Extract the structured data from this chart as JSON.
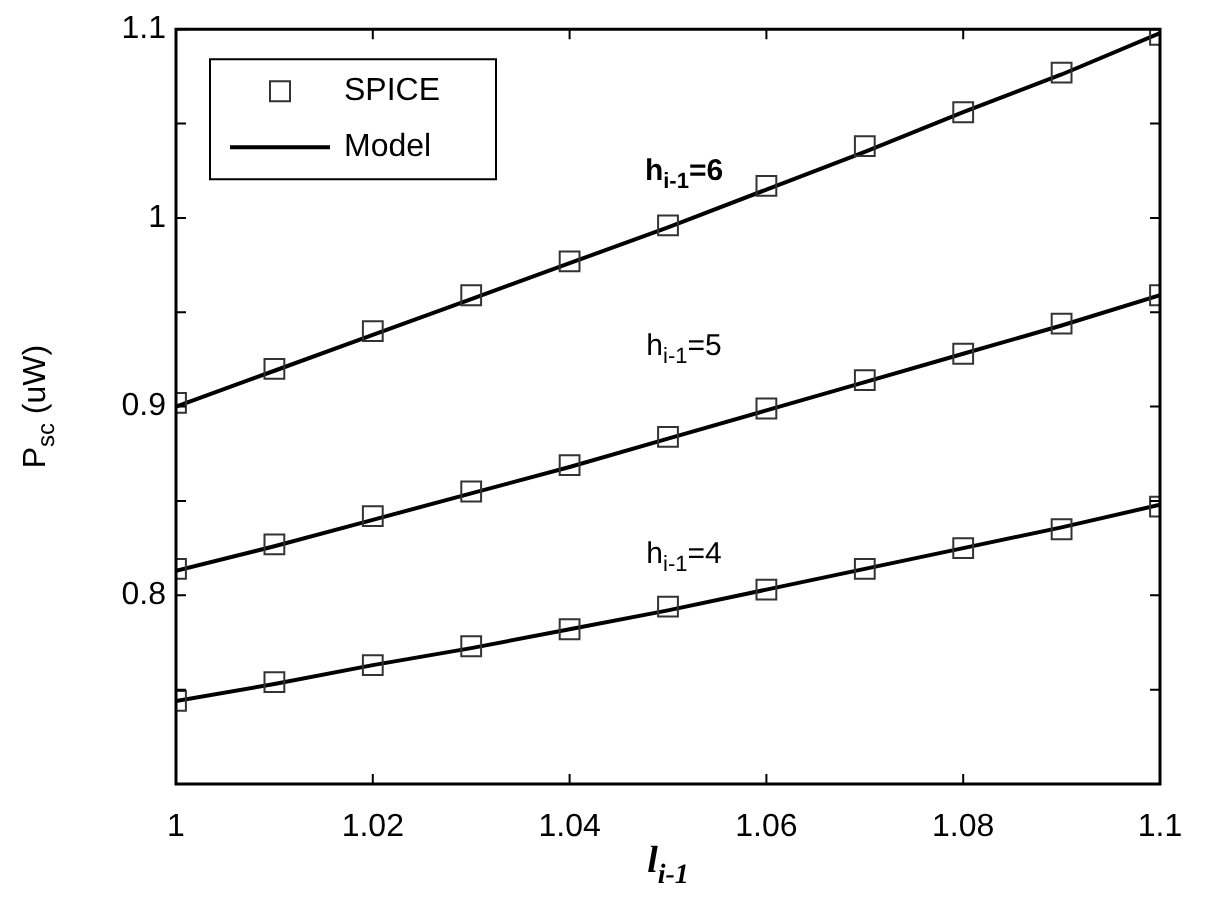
{
  "chart_data": {
    "type": "scatter",
    "xlabel": "l$_{i-1}$",
    "ylabel": "P$_{sc}$ (uW)",
    "x": [
      1,
      1.01,
      1.02,
      1.03,
      1.04,
      1.05,
      1.06,
      1.07,
      1.08,
      1.09,
      1.1
    ],
    "series": [
      {
        "name": "SPICE",
        "marker": "square",
        "color": "#333333",
        "values": [
          0.902,
          0.92,
          0.94,
          0.959,
          0.977,
          0.996,
          1.017,
          1.038,
          1.056,
          1.077,
          1.097
        ]
      },
      {
        "marker": "square",
        "color": "#333333",
        "values": [
          0.814,
          0.827,
          0.842,
          0.855,
          0.869,
          0.884,
          0.899,
          0.914,
          0.928,
          0.944,
          0.959
        ]
      },
      {
        "marker": "square",
        "color": "#333333",
        "values": [
          0.744,
          0.754,
          0.763,
          0.773,
          0.782,
          0.794,
          0.803,
          0.814,
          0.825,
          0.835,
          0.847
        ]
      },
      {
        "name": "Model",
        "type": "line",
        "marker": "none",
        "line_style": "solid",
        "color": "#000000",
        "values": [
          0.9,
          0.919,
          0.938,
          0.957,
          0.976,
          0.995,
          1.015,
          1.035,
          1.056,
          1.076,
          1.098
        ]
      },
      {
        "type": "line",
        "marker": "none",
        "line_style": "solid",
        "color": "#000000",
        "values": [
          0.813,
          0.826,
          0.84,
          0.854,
          0.868,
          0.883,
          0.898,
          0.913,
          0.928,
          0.943,
          0.959
        ]
      },
      {
        "type": "line",
        "marker": "none",
        "line_style": "solid",
        "color": "#000000",
        "values": [
          0.744,
          0.753,
          0.763,
          0.772,
          0.782,
          0.792,
          0.803,
          0.814,
          0.825,
          0.836,
          0.848
        ]
      }
    ],
    "xlim": [
      1,
      1.1
    ],
    "xticks": [
      1,
      1.02,
      1.04,
      1.06,
      1.08,
      1.1
    ],
    "ylim": [
      0.7,
      1.1
    ],
    "yticks": [
      {
        "value": 0.75,
        "label": null
      },
      0.8,
      {
        "value": 0.85,
        "label": null
      },
      0.9,
      {
        "value": 0.95,
        "label": null
      },
      1,
      {
        "value": 1.05,
        "label": null
      },
      1.1
    ],
    "annotations": [
      "h$_{i-1}$=6",
      "h$_{i-1}$=5",
      "h$_{i-1}$=4"
    ],
    "grid": false,
    "legend": "top left"
  }
}
